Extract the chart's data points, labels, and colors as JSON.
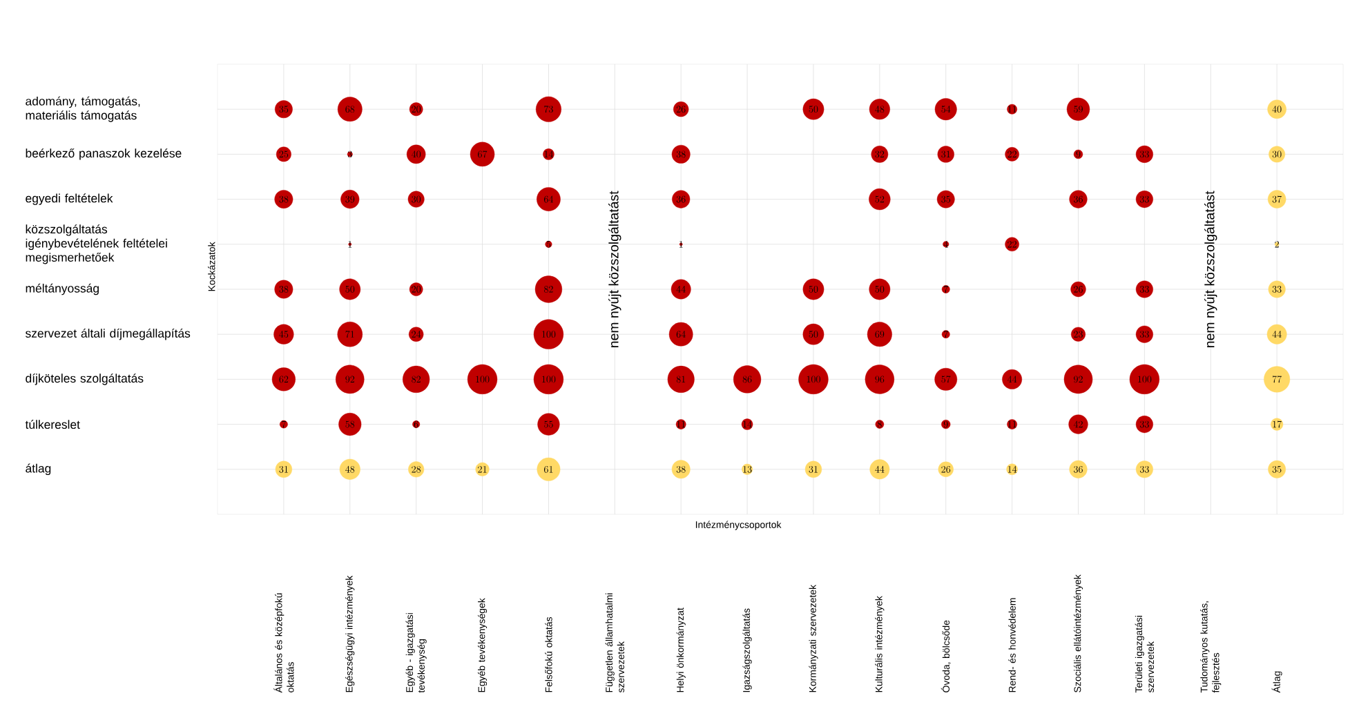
{
  "chart_data": {
    "type": "heatmap",
    "xlabel": "Intézménycsoportok",
    "ylabel": "Kockázatok",
    "categories": [
      "Általános és középfokú oktatás",
      "Egészségügyi intézmények",
      "Egyéb - igazgatási tevékenység",
      "Egyéb tevékenységek",
      "Felsőfokú oktatás",
      "Független államhatalmi szervezetek",
      "Helyi önkormányzat",
      "Igazságszolgáltatás",
      "Kormányzati szervezetek",
      "Kulturális intézmények",
      "Óvoda, bölcsőde",
      "Rend- és honvédelem",
      "Szociális ellátóintézmények",
      "Területi igazgatási szervezetek",
      "Tudományos kutatás, fejlesztés",
      "Átlag"
    ],
    "y_categories": [
      "adomány, támogatás, materiális támogatás",
      "beérkező panaszok kezelése",
      "egyedi feltételek",
      "közszolgáltatás igénybevételének feltételei megismerhetőek",
      "méltányosság",
      "szervezet általi díjmegállapítás",
      "díjköteles szolgáltatás",
      "túlkereslet",
      "átlag"
    ],
    "cells": [
      [
        35,
        68,
        20,
        null,
        73,
        null,
        26,
        null,
        50,
        48,
        54,
        11,
        59,
        null,
        null,
        40
      ],
      [
        25,
        3,
        40,
        67,
        14,
        null,
        38,
        null,
        null,
        32,
        31,
        22,
        9,
        33,
        null,
        30
      ],
      [
        38,
        39,
        30,
        null,
        64,
        null,
        36,
        null,
        null,
        52,
        35,
        null,
        36,
        33,
        null,
        37
      ],
      [
        null,
        1,
        null,
        null,
        5,
        null,
        1,
        null,
        null,
        null,
        4,
        22,
        null,
        null,
        null,
        2
      ],
      [
        38,
        50,
        20,
        null,
        82,
        null,
        44,
        null,
        50,
        50,
        7,
        null,
        26,
        33,
        null,
        33
      ],
      [
        45,
        71,
        24,
        null,
        100,
        null,
        64,
        null,
        50,
        69,
        7,
        null,
        23,
        33,
        null,
        44
      ],
      [
        62,
        92,
        82,
        100,
        100,
        null,
        81,
        86,
        100,
        96,
        57,
        44,
        92,
        100,
        null,
        77
      ],
      [
        7,
        58,
        6,
        null,
        55,
        null,
        11,
        14,
        null,
        8,
        9,
        11,
        42,
        33,
        null,
        17
      ],
      [
        31,
        48,
        28,
        21,
        61,
        null,
        38,
        13,
        31,
        44,
        26,
        14,
        36,
        33,
        null,
        35
      ]
    ],
    "colors": [
      [
        "#c00000",
        "#c00000",
        "#c00000",
        null,
        "#c00000",
        null,
        "#c00000",
        null,
        "#c00000",
        "#c00000",
        "#c00000",
        "#c00000",
        "#c00000",
        null,
        null,
        "#ffd966"
      ],
      [
        "#c00000",
        "#c00000",
        "#c00000",
        "#c00000",
        "#c00000",
        null,
        "#c00000",
        null,
        null,
        "#c00000",
        "#c00000",
        "#c00000",
        "#c00000",
        "#c00000",
        null,
        "#ffd966"
      ],
      [
        "#c00000",
        "#c00000",
        "#c00000",
        null,
        "#c00000",
        null,
        "#c00000",
        null,
        null,
        "#c00000",
        "#c00000",
        null,
        "#c00000",
        "#c00000",
        null,
        "#ffd966"
      ],
      [
        null,
        "#c00000",
        null,
        null,
        "#c00000",
        null,
        "#c00000",
        null,
        null,
        null,
        "#c00000",
        "#c00000",
        null,
        null,
        null,
        "#ffd966"
      ],
      [
        "#c00000",
        "#c00000",
        "#c00000",
        null,
        "#c00000",
        null,
        "#c00000",
        null,
        "#c00000",
        "#c00000",
        "#c00000",
        null,
        "#c00000",
        "#c00000",
        null,
        "#ffd966"
      ],
      [
        "#c00000",
        "#c00000",
        "#c00000",
        null,
        "#c00000",
        null,
        "#c00000",
        null,
        "#c00000",
        "#c00000",
        "#c00000",
        null,
        "#c00000",
        "#c00000",
        null,
        "#ffd966"
      ],
      [
        "#c00000",
        "#c00000",
        "#c00000",
        "#c00000",
        "#c00000",
        null,
        "#c00000",
        "#c00000",
        "#c00000",
        "#c00000",
        "#c00000",
        "#c00000",
        "#c00000",
        "#c00000",
        null,
        "#ffd966"
      ],
      [
        "#c00000",
        "#c00000",
        "#c00000",
        null,
        "#c00000",
        null,
        "#c00000",
        "#c00000",
        null,
        "#c00000",
        "#c00000",
        "#c00000",
        "#c00000",
        "#c00000",
        null,
        "#ffd966"
      ],
      [
        "#ffd966",
        "#ffd966",
        "#ffd966",
        "#ffd966",
        "#ffd966",
        null,
        "#ffd966",
        "#ffd966",
        "#ffd966",
        "#ffd966",
        "#ffd966",
        "#ffd966",
        "#ffd966",
        "#ffd966",
        null,
        "#ffd966"
      ]
    ],
    "data_labels": true,
    "grid": true,
    "annotations": [
      "nem nyújt közszolgáltatást",
      "nem nyújt közszolgáltatást"
    ]
  }
}
